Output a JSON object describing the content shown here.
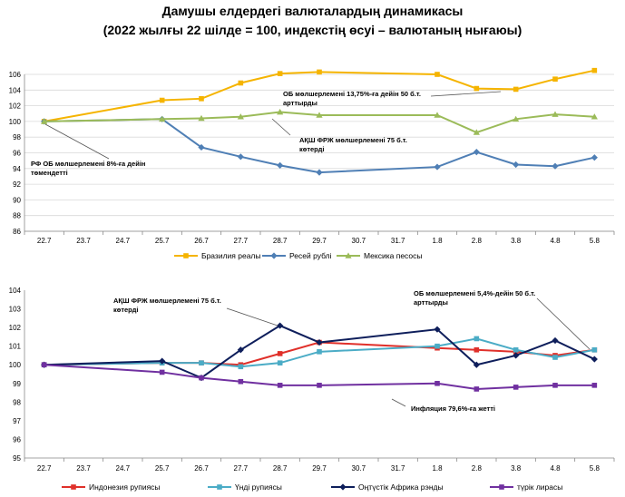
{
  "title": "Дамушы елдердегі валюталардың динамикасы",
  "subtitle": "(2022 жылғы 22 шілде = 100, индекстің өсуі – валютаның нығаюы)",
  "chart_data": [
    {
      "type": "line",
      "categories": [
        "22.7",
        "23.7",
        "24.7",
        "25.7",
        "26.7",
        "27.7",
        "28.7",
        "29.7",
        "30.7",
        "31.7",
        "1.8",
        "2.8",
        "3.8",
        "4.8",
        "5.8"
      ],
      "ylim": [
        86,
        106
      ],
      "yticks": [
        86,
        88,
        90,
        92,
        94,
        96,
        98,
        100,
        102,
        104,
        106
      ],
      "grid": true,
      "legend": "bottom",
      "series": [
        {
          "name": "Бразилия реалы",
          "color": "#F5B400",
          "marker": "square",
          "values": [
            100,
            null,
            null,
            102.7,
            102.9,
            104.9,
            106.1,
            106.3,
            null,
            null,
            106.0,
            104.2,
            104.1,
            105.4,
            106.5
          ]
        },
        {
          "name": "Ресей рублі",
          "color": "#4F7FB5",
          "marker": "diamond",
          "values": [
            100,
            null,
            null,
            100.3,
            96.7,
            95.5,
            94.4,
            93.5,
            null,
            null,
            94.2,
            96.1,
            94.5,
            94.3,
            95.4
          ]
        },
        {
          "name": "Мексика песосы",
          "color": "#9BBB59",
          "marker": "triangle",
          "values": [
            100,
            null,
            null,
            100.3,
            100.4,
            100.6,
            101.2,
            100.8,
            null,
            null,
            100.8,
            98.6,
            100.3,
            100.9,
            100.6
          ]
        }
      ],
      "annotations": [
        {
          "lines": [
            "ОБ мөлшерлемені 13,75%-ға дейін 50 б.т.",
            "арттырды"
          ]
        },
        {
          "lines": [
            "АҚШ ФРЖ мөлшерлемені 75 б.т.",
            "көтерді"
          ]
        },
        {
          "lines": [
            "РФ ОБ мөлшерлемені 8%-ға дейін",
            "төмендетті"
          ]
        }
      ]
    },
    {
      "type": "line",
      "categories": [
        "22.7",
        "23.7",
        "24.7",
        "25.7",
        "26.7",
        "27.7",
        "28.7",
        "29.7",
        "30.7",
        "31.7",
        "1.8",
        "2.8",
        "3.8",
        "4.8",
        "5.8"
      ],
      "ylim": [
        95,
        104
      ],
      "yticks": [
        95,
        96,
        97,
        98,
        99,
        100,
        101,
        102,
        103,
        104
      ],
      "grid": false,
      "legend": "bottom",
      "series": [
        {
          "name": "Индонезия рупиясы",
          "color": "#E0302A",
          "marker": "square",
          "values": [
            100,
            null,
            null,
            100.1,
            100.1,
            100.0,
            100.6,
            101.2,
            null,
            null,
            100.9,
            100.8,
            100.7,
            100.5,
            100.8
          ]
        },
        {
          "name": "Үнді рупиясы",
          "color": "#4BACC6",
          "marker": "square",
          "values": [
            100,
            null,
            null,
            100.1,
            100.1,
            99.9,
            100.1,
            100.7,
            null,
            null,
            101.0,
            101.4,
            100.8,
            100.4,
            100.8
          ]
        },
        {
          "name": "Оңтүстік Африка рэнды",
          "color": "#0E1E5B",
          "marker": "diamond",
          "values": [
            100,
            null,
            null,
            100.2,
            99.3,
            100.8,
            102.1,
            101.2,
            null,
            null,
            101.9,
            100.0,
            100.5,
            101.3,
            100.3
          ]
        },
        {
          "name": "түрік лирасы",
          "color": "#7030A0",
          "marker": "square",
          "values": [
            100,
            null,
            null,
            99.6,
            99.3,
            99.1,
            98.9,
            98.9,
            null,
            null,
            99.0,
            98.7,
            98.8,
            98.9,
            98.9
          ]
        }
      ],
      "annotations": [
        {
          "lines": [
            "АҚШ ФРЖ мөлшерлемені 75 б.т.",
            "көтерді"
          ]
        },
        {
          "lines": [
            "ОБ мөлшерлемені 5,4%-дейін 50 б.т.",
            "арттырды"
          ]
        },
        {
          "lines": [
            "Инфляция 79,6%-ға жетті"
          ]
        }
      ]
    }
  ]
}
